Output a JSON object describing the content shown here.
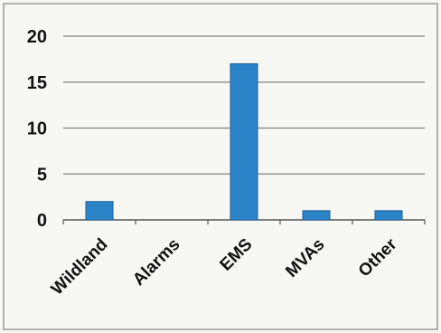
{
  "chart_data": {
    "type": "bar",
    "title": "",
    "xlabel": "",
    "ylabel": "",
    "categories": [
      "Wildland",
      "Alarms",
      "EMS",
      "MVAs",
      "Other"
    ],
    "values": [
      2,
      0,
      17,
      1,
      1
    ],
    "ylim": [
      0,
      20
    ],
    "yticks": [
      0,
      5,
      10,
      15,
      20
    ],
    "ytick_labels": [
      "0",
      "5",
      "10",
      "15",
      "20"
    ],
    "grid": true,
    "legend": "none",
    "colors": {
      "bar": "#2b83c8",
      "bar_edge": "#1d5f96",
      "grid": "#7f7f7f",
      "axis": "#555555",
      "background": "#f7f7f4",
      "frame": "#9a9a9a"
    }
  }
}
